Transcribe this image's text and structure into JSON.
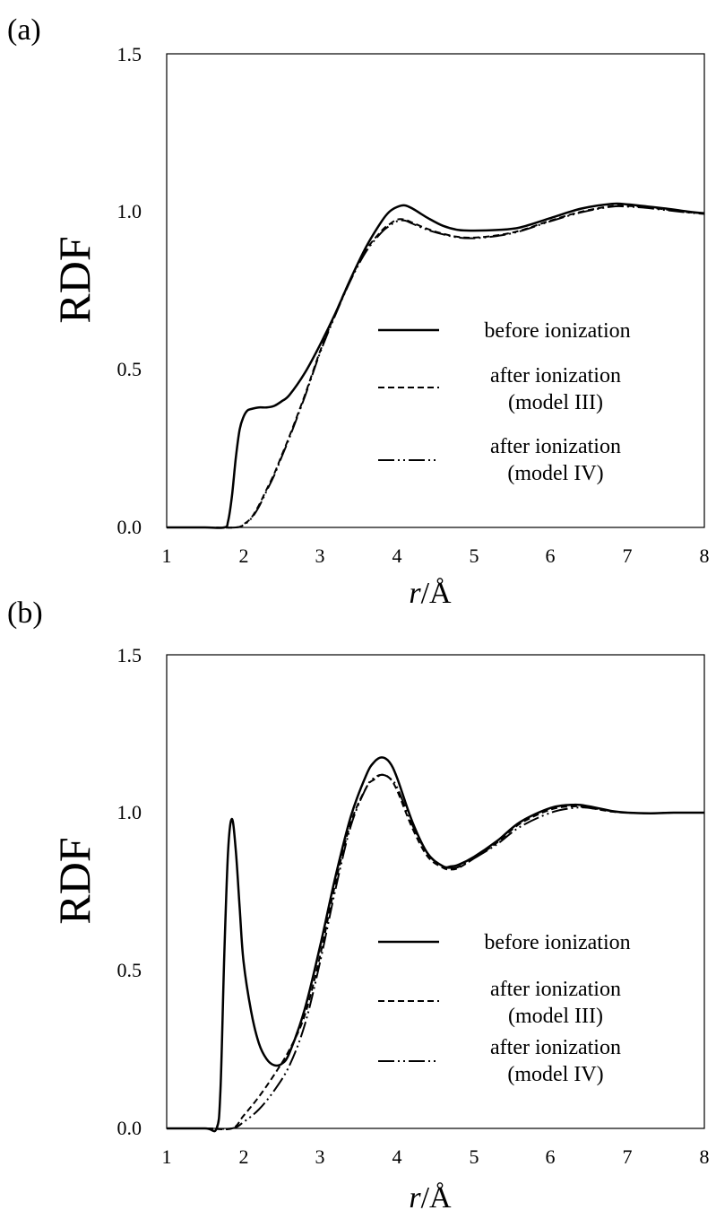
{
  "chart_data": [
    {
      "type": "line",
      "panel_label": "(a)",
      "xlabel_italic": "r",
      "xlabel_rest": "/Å",
      "ylabel": "RDF",
      "xlim": [
        1,
        8
      ],
      "ylim": [
        0,
        1.5
      ],
      "xticks": [
        "1",
        "2",
        "3",
        "4",
        "5",
        "6",
        "7",
        "8"
      ],
      "yticks": [
        "0.0",
        "0.5",
        "1.0",
        "1.5"
      ],
      "legend_position": "center-right",
      "series": [
        {
          "name": "before ionization",
          "style": "solid",
          "x": [
            1.0,
            1.5,
            1.75,
            1.8,
            1.85,
            1.9,
            1.95,
            2.0,
            2.05,
            2.1,
            2.2,
            2.3,
            2.4,
            2.5,
            2.6,
            2.8,
            3.0,
            3.2,
            3.4,
            3.6,
            3.8,
            3.9,
            4.0,
            4.1,
            4.2,
            4.3,
            4.4,
            4.6,
            4.8,
            5.0,
            5.3,
            5.6,
            6.0,
            6.4,
            6.8,
            7.0,
            7.2,
            7.5,
            7.8,
            8.0
          ],
          "y": [
            0.0,
            0.0,
            0.0,
            0.02,
            0.1,
            0.22,
            0.31,
            0.35,
            0.37,
            0.375,
            0.38,
            0.38,
            0.385,
            0.4,
            0.42,
            0.49,
            0.58,
            0.68,
            0.79,
            0.89,
            0.97,
            1.0,
            1.015,
            1.02,
            1.01,
            0.995,
            0.98,
            0.955,
            0.942,
            0.94,
            0.942,
            0.95,
            0.98,
            1.01,
            1.025,
            1.023,
            1.018,
            1.01,
            1.0,
            0.995
          ]
        },
        {
          "name": "after ionization (model III)",
          "style": "dashed",
          "x": [
            1.0,
            1.5,
            1.9,
            2.0,
            2.1,
            2.2,
            2.3,
            2.4,
            2.5,
            2.6,
            2.8,
            3.0,
            3.2,
            3.4,
            3.6,
            3.8,
            3.9,
            4.0,
            4.1,
            4.2,
            4.4,
            4.6,
            4.8,
            5.0,
            5.3,
            5.6,
            6.0,
            6.4,
            6.8,
            7.0,
            7.2,
            7.5,
            7.8,
            8.0
          ],
          "y": [
            0.0,
            0.0,
            0.0,
            0.01,
            0.03,
            0.07,
            0.12,
            0.17,
            0.23,
            0.29,
            0.42,
            0.56,
            0.68,
            0.79,
            0.88,
            0.94,
            0.96,
            0.975,
            0.975,
            0.965,
            0.945,
            0.93,
            0.92,
            0.918,
            0.925,
            0.94,
            0.972,
            1.0,
            1.018,
            1.018,
            1.015,
            1.007,
            0.998,
            0.995
          ]
        },
        {
          "name": "after ionization (model IV)",
          "style": "dash-dot-dot",
          "x": [
            1.0,
            1.5,
            1.9,
            2.0,
            2.1,
            2.2,
            2.3,
            2.4,
            2.5,
            2.6,
            2.8,
            3.0,
            3.2,
            3.4,
            3.6,
            3.8,
            3.9,
            4.0,
            4.1,
            4.2,
            4.4,
            4.6,
            4.8,
            5.0,
            5.3,
            5.6,
            6.0,
            6.4,
            6.8,
            7.0,
            7.2,
            7.5,
            7.8,
            8.0
          ],
          "y": [
            0.0,
            0.0,
            0.0,
            0.008,
            0.028,
            0.065,
            0.115,
            0.165,
            0.225,
            0.285,
            0.415,
            0.555,
            0.675,
            0.785,
            0.875,
            0.935,
            0.955,
            0.97,
            0.972,
            0.962,
            0.942,
            0.928,
            0.918,
            0.916,
            0.923,
            0.938,
            0.97,
            0.998,
            1.016,
            1.016,
            1.013,
            1.005,
            0.997,
            0.993
          ]
        }
      ],
      "legend": [
        {
          "lines": [
            "before ionization"
          ],
          "style": "solid"
        },
        {
          "lines": [
            "after ionization",
            "(model III)"
          ],
          "style": "dashed"
        },
        {
          "lines": [
            "after ionization",
            "(model IV)"
          ],
          "style": "dash-dot-dot"
        }
      ]
    },
    {
      "type": "line",
      "panel_label": "(b)",
      "xlabel_italic": "r",
      "xlabel_rest": "/Å",
      "ylabel": "RDF",
      "xlim": [
        1,
        8
      ],
      "ylim": [
        0,
        1.5
      ],
      "xticks": [
        "1",
        "2",
        "3",
        "4",
        "5",
        "6",
        "7",
        "8"
      ],
      "yticks": [
        "0.0",
        "0.5",
        "1.0",
        "1.5"
      ],
      "legend_position": "center-right",
      "series": [
        {
          "name": "before ionization",
          "style": "solid",
          "x": [
            1.0,
            1.5,
            1.65,
            1.7,
            1.75,
            1.8,
            1.85,
            1.9,
            1.95,
            2.0,
            2.1,
            2.2,
            2.3,
            2.4,
            2.5,
            2.6,
            2.8,
            3.0,
            3.2,
            3.4,
            3.6,
            3.7,
            3.8,
            3.9,
            4.0,
            4.2,
            4.4,
            4.6,
            4.7,
            4.8,
            5.0,
            5.3,
            5.6,
            6.0,
            6.3,
            6.5,
            6.8,
            7.0,
            7.3,
            7.6,
            8.0
          ],
          "y": [
            0.0,
            0.0,
            0.0,
            0.12,
            0.55,
            0.88,
            0.98,
            0.88,
            0.7,
            0.53,
            0.37,
            0.27,
            0.22,
            0.2,
            0.205,
            0.24,
            0.38,
            0.58,
            0.8,
            0.99,
            1.12,
            1.16,
            1.175,
            1.16,
            1.11,
            0.97,
            0.87,
            0.83,
            0.83,
            0.835,
            0.86,
            0.91,
            0.97,
            1.015,
            1.025,
            1.02,
            1.005,
            1.0,
            0.998,
            1.0,
            1.0
          ]
        },
        {
          "name": "after ionization (model III)",
          "style": "dashed",
          "x": [
            1.0,
            1.5,
            1.85,
            2.0,
            2.2,
            2.4,
            2.6,
            2.8,
            3.0,
            3.2,
            3.4,
            3.6,
            3.7,
            3.8,
            3.9,
            4.0,
            4.2,
            4.4,
            4.6,
            4.7,
            4.8,
            5.0,
            5.3,
            5.6,
            6.0,
            6.3,
            6.5,
            6.8,
            7.0,
            7.3,
            7.6,
            8.0
          ],
          "y": [
            0.0,
            0.0,
            0.0,
            0.04,
            0.1,
            0.17,
            0.25,
            0.36,
            0.55,
            0.78,
            0.97,
            1.08,
            1.105,
            1.12,
            1.11,
            1.07,
            0.95,
            0.86,
            0.825,
            0.82,
            0.825,
            0.855,
            0.905,
            0.965,
            1.01,
            1.02,
            1.015,
            1.003,
            1.0,
            0.998,
            1.0,
            1.0
          ]
        },
        {
          "name": "after ionization (model IV)",
          "style": "dash-dot-dot",
          "x": [
            1.0,
            1.5,
            1.85,
            2.0,
            2.2,
            2.4,
            2.6,
            2.8,
            3.0,
            3.2,
            3.4,
            3.6,
            3.7,
            3.8,
            3.9,
            4.0,
            4.2,
            4.4,
            4.6,
            4.7,
            4.8,
            5.0,
            5.3,
            5.6,
            6.0,
            6.3,
            6.5,
            6.8,
            7.0,
            7.3,
            7.6,
            8.0
          ],
          "y": [
            0.0,
            0.0,
            0.0,
            0.02,
            0.06,
            0.12,
            0.2,
            0.33,
            0.53,
            0.76,
            0.96,
            1.08,
            1.11,
            1.12,
            1.11,
            1.08,
            0.96,
            0.87,
            0.83,
            0.825,
            0.828,
            0.855,
            0.9,
            0.955,
            1.0,
            1.015,
            1.015,
            1.005,
            1.0,
            0.998,
            1.0,
            1.0
          ]
        }
      ],
      "legend": [
        {
          "lines": [
            "before ionization"
          ],
          "style": "solid"
        },
        {
          "lines": [
            "after ionization",
            "(model III)"
          ],
          "style": "dashed"
        },
        {
          "lines": [
            "after ionization",
            "(model IV)"
          ],
          "style": "dash-dot-dot"
        }
      ]
    }
  ]
}
